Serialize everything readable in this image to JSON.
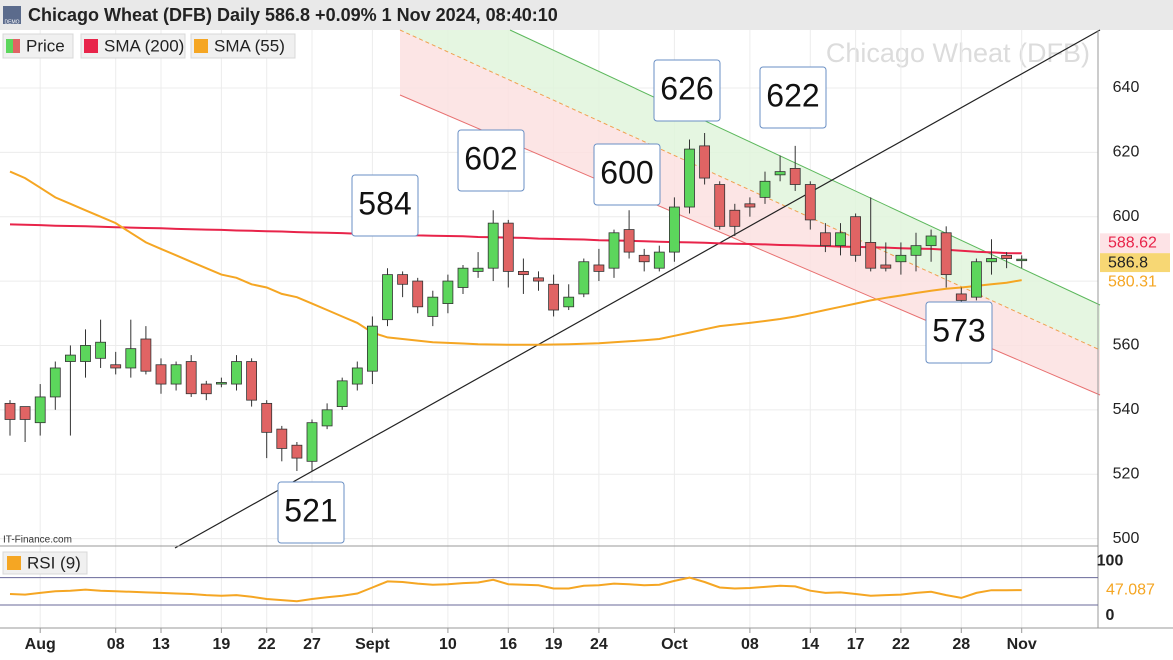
{
  "chart_data": {
    "type": "candlestick",
    "title": "Chicago Wheat (DFB) Daily 586.8 +0.09% 1 Nov 2024, 08:40:10",
    "badge": "DEMO",
    "watermark": "Chicago Wheat (DFB)",
    "source": "IT-Finance.com",
    "categories": [
      null,
      null,
      "Aug",
      null,
      null,
      null,
      null,
      "08",
      null,
      null,
      "13",
      null,
      null,
      null,
      "19",
      null,
      null,
      "22",
      null,
      null,
      "27",
      null,
      null,
      null,
      "Sept",
      null,
      null,
      null,
      null,
      "10",
      null,
      null,
      null,
      "16",
      null,
      null,
      "19",
      null,
      null,
      "24",
      null,
      null,
      null,
      null,
      "Oct",
      null,
      null,
      null,
      null,
      "08",
      null,
      null,
      null,
      "14",
      null,
      null,
      "17",
      null,
      null,
      "22",
      null,
      null,
      null,
      "28",
      null,
      null,
      null,
      "Nov"
    ],
    "series": [
      {
        "name": "Price",
        "up_color": "#5cd65c",
        "down_color": "#e06464",
        "open": [
          542,
          541,
          536,
          544,
          555,
          555,
          556,
          554,
          553,
          562,
          554,
          548,
          555,
          548,
          548,
          548,
          555,
          542,
          534,
          529,
          524,
          535,
          541,
          548,
          552,
          568,
          582,
          580,
          569,
          573,
          578,
          583,
          584,
          598,
          583,
          581,
          579,
          572,
          576,
          585,
          584,
          596,
          588,
          584,
          589,
          603,
          622,
          610,
          602,
          604,
          606,
          613,
          615,
          610,
          595,
          591,
          600,
          592,
          585,
          586,
          588,
          591,
          595,
          576,
          575,
          586,
          588,
          586.5
        ],
        "high": [
          543,
          541,
          548,
          555,
          560,
          565,
          568,
          558,
          568,
          566,
          556,
          555,
          557,
          549,
          550,
          557,
          556,
          543,
          535,
          530,
          537,
          542,
          550,
          555,
          569,
          584,
          583,
          581,
          577,
          582,
          585,
          589,
          602,
          599,
          587,
          583,
          582,
          579,
          587,
          590,
          596,
          602,
          590,
          591,
          606,
          624,
          626,
          611,
          604,
          606,
          614,
          619,
          622,
          611,
          598,
          598,
          601,
          606,
          592,
          592,
          595,
          596,
          597,
          578,
          587,
          593,
          589,
          588
        ],
        "low": [
          532,
          530,
          532,
          540,
          532,
          550,
          553,
          551,
          550,
          551,
          545,
          546,
          544,
          543,
          547,
          546,
          541,
          525,
          524,
          521,
          521,
          534,
          540,
          546,
          548,
          566,
          575,
          570,
          566,
          570,
          576,
          581,
          580,
          578,
          576,
          577,
          569,
          571,
          575,
          580,
          581,
          587,
          583,
          583,
          586,
          601,
          610,
          596,
          594,
          600,
          604,
          611,
          608,
          596,
          589,
          588,
          586,
          583,
          583,
          582,
          583,
          586,
          578,
          573,
          574,
          582,
          584,
          584
        ],
        "close": [
          537,
          537,
          544,
          553,
          557,
          560,
          561,
          553,
          559,
          552,
          548,
          554,
          545,
          545,
          548.5,
          555,
          543,
          533,
          528,
          525,
          536,
          540,
          549,
          553,
          566,
          582,
          579,
          572,
          575,
          580,
          584,
          584,
          598,
          583,
          582,
          580,
          571,
          575,
          586,
          583,
          595,
          589,
          586,
          589,
          603,
          621,
          612,
          597,
          597,
          603,
          611,
          614,
          610,
          599,
          591,
          595,
          588,
          584,
          584,
          588,
          591,
          594,
          582,
          574,
          586,
          587,
          587,
          586.8
        ]
      },
      {
        "name": "SMA (200)",
        "color": "#e8244a",
        "values": [
          597.6,
          597.5,
          597.4,
          597.2,
          597.1,
          597.0,
          596.9,
          596.7,
          596.6,
          596.5,
          596.4,
          596.2,
          596.1,
          596.0,
          595.9,
          595.7,
          595.6,
          595.5,
          595.4,
          595.2,
          595.1,
          595.0,
          594.9,
          594.7,
          594.6,
          594.5,
          594.4,
          594.2,
          594.1,
          594.0,
          593.9,
          593.7,
          593.6,
          593.5,
          593.4,
          593.2,
          593.1,
          593.0,
          592.9,
          592.7,
          592.6,
          592.5,
          592.4,
          592.2,
          592.1,
          592.0,
          591.9,
          591.7,
          591.6,
          591.5,
          591.4,
          591.2,
          591.1,
          591.0,
          590.9,
          590.7,
          590.6,
          590.5,
          590.4,
          590.2,
          590.1,
          590.0,
          589.7,
          589.4,
          589.1,
          588.9,
          588.7,
          588.62
        ]
      },
      {
        "name": "SMA (55)",
        "color": "#f5a623",
        "values": [
          614,
          612,
          609,
          606,
          604,
          602,
          600,
          598,
          595,
          592,
          590,
          588,
          586,
          584,
          582,
          581,
          579,
          578,
          576,
          575,
          573,
          571,
          569,
          567,
          564,
          562.5,
          562,
          561.5,
          561,
          560.8,
          560.6,
          560.4,
          560.3,
          560.2,
          560.2,
          560.2,
          560.3,
          560.4,
          560.5,
          560.7,
          561,
          561.3,
          561.6,
          562,
          563,
          564,
          565,
          566,
          566.5,
          567,
          567.6,
          568.2,
          569,
          570,
          571,
          572,
          573,
          574,
          574.8,
          575.5,
          576.3,
          577,
          577.6,
          578,
          578.5,
          579,
          579.5,
          580.31
        ]
      }
    ],
    "ylim": [
      498,
      658
    ],
    "yticks": [
      500,
      520,
      540,
      560,
      580,
      600,
      620,
      640
    ],
    "annotations": [
      521,
      584,
      602,
      600,
      626,
      622,
      573
    ],
    "rsi": {
      "name": "RSI (9)",
      "color": "#f5a623",
      "values": [
        40,
        39,
        42,
        45,
        46,
        48,
        46,
        45,
        44,
        43,
        42,
        41,
        40,
        38,
        37,
        38,
        35,
        31,
        29,
        27,
        31,
        34,
        37,
        41,
        52,
        63,
        62,
        59,
        57,
        58,
        60,
        61,
        66,
        58,
        57,
        56,
        50,
        50,
        55,
        56,
        59,
        58,
        56,
        57,
        64,
        70,
        62,
        52,
        50,
        51,
        53,
        55,
        54,
        46,
        42,
        43,
        40,
        37,
        38,
        39,
        42,
        44,
        38,
        33,
        42,
        47,
        47,
        47.087
      ],
      "ylim": [
        -22,
        124
      ],
      "yticks": [
        0,
        100
      ],
      "reference_lines": [
        20,
        70
      ]
    }
  }
}
